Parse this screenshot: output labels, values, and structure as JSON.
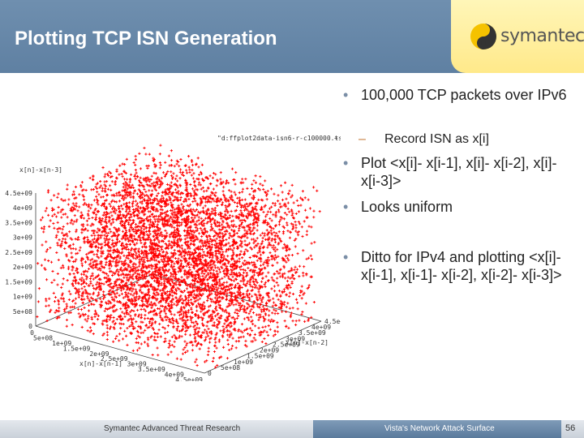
{
  "slide": {
    "title": "Plotting TCP ISN Generation",
    "logo_text": "symantec.",
    "logo_icon": "symantec-swirl-icon",
    "footer_left": "Symantec Advanced Threat Research",
    "footer_center": "Vista's Network Attack Surface",
    "page_number": "56",
    "colors": {
      "header": "#6585a8",
      "logo_bg": "#ffef9c",
      "point_color": "#ff0000"
    }
  },
  "bullets": [
    {
      "level": 1,
      "text": "100,000 TCP packets over IPv6"
    },
    {
      "level": 2,
      "text": "Record ISN as x[i]"
    },
    {
      "level": 1,
      "text": "Plot <x[i]- x[i-1], x[i]- x[i-2], x[i]- x[i-3]>"
    },
    {
      "level": 1,
      "text": "Looks uniform"
    },
    {
      "level": 1,
      "text": "Ditto for IPv4 and plotting <x[i]- x[i-1], x[i-1]- x[i-2], x[i-2]- x[i-3]>"
    }
  ],
  "chart_data": {
    "type": "scatter",
    "dimensions": 3,
    "legend": "\"d:ffplot2data-isn6-r-c100000.tsv\"",
    "legend_placement": "top-right",
    "zlabel": "x[n]-x[n-3]",
    "xlabel": "x[n]-x[n-1]",
    "ylabel": "x[n]-x[n-2]",
    "z_ticks": [
      "4.5e+09",
      "4e+09",
      "3.5e+09",
      "3e+09",
      "2.5e+09",
      "2e+09",
      "1.5e+09",
      "1e+09",
      "5e+08",
      "0"
    ],
    "x_ticks": [
      "0",
      "5e+08",
      "1e+09",
      "1.5e+09",
      "2e+09",
      "2.5e+09",
      "3e+09",
      "3.5e+09",
      "4e+09",
      "4.5e+09"
    ],
    "y_ticks": [
      "0",
      "5e+08",
      "1e+09",
      "1.5e+09",
      "2e+09",
      "2.5e+09",
      "3e+09",
      "3.5e+09",
      "4e+09",
      "4.5e+09"
    ],
    "range": [
      0,
      4500000000
    ],
    "distribution": "uniform",
    "point_count": 100000
  }
}
